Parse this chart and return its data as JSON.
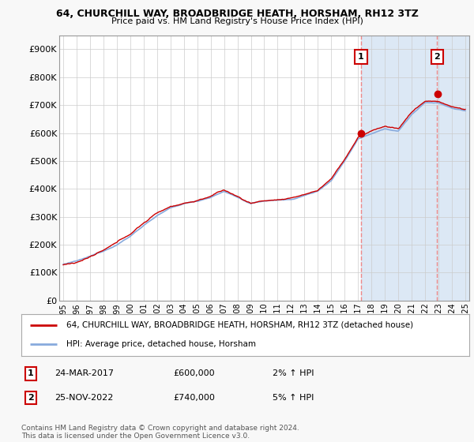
{
  "title": "64, CHURCHILL WAY, BROADBRIDGE HEATH, HORSHAM, RH12 3TZ",
  "subtitle": "Price paid vs. HM Land Registry's House Price Index (HPI)",
  "ylabel_ticks": [
    "£0",
    "£100K",
    "£200K",
    "£300K",
    "£400K",
    "£500K",
    "£600K",
    "£700K",
    "£800K",
    "£900K"
  ],
  "ytick_values": [
    0,
    100000,
    200000,
    300000,
    400000,
    500000,
    600000,
    700000,
    800000,
    900000
  ],
  "ylim": [
    0,
    950000
  ],
  "xlim_start": 1994.7,
  "xlim_end": 2025.3,
  "marker1_date": 2017.22,
  "marker2_date": 2022.9,
  "marker1_value": 600000,
  "marker2_value": 740000,
  "legend_line1": "64, CHURCHILL WAY, BROADBRIDGE HEATH, HORSHAM, RH12 3TZ (detached house)",
  "legend_line2": "HPI: Average price, detached house, Horsham",
  "annotation1_label": "1",
  "annotation1_date": "24-MAR-2017",
  "annotation1_price": "£600,000",
  "annotation1_hpi": "2% ↑ HPI",
  "annotation2_label": "2",
  "annotation2_date": "25-NOV-2022",
  "annotation2_price": "£740,000",
  "annotation2_hpi": "5% ↑ HPI",
  "footer": "Contains HM Land Registry data © Crown copyright and database right 2024.\nThis data is licensed under the Open Government Licence v3.0.",
  "line_color_red": "#cc0000",
  "line_color_blue": "#88aadd",
  "marker_box_color": "#cc0000",
  "bg_color": "#ffffff",
  "shade_color": "#dce8f5",
  "vline_color": "#ee8888",
  "grid_color": "#cccccc",
  "key_years": [
    1995,
    1996,
    1997,
    1998,
    1999,
    2000,
    2001,
    2002,
    2003,
    2004,
    2005,
    2006,
    2007,
    2008,
    2009,
    2010,
    2011,
    2012,
    2013,
    2014,
    2015,
    2016,
    2017,
    2018,
    2019,
    2020,
    2021,
    2022,
    2023,
    2024,
    2025
  ],
  "key_vals_hpi": [
    130000,
    140000,
    155000,
    175000,
    200000,
    230000,
    270000,
    305000,
    330000,
    345000,
    355000,
    370000,
    390000,
    370000,
    345000,
    355000,
    358000,
    360000,
    375000,
    390000,
    430000,
    500000,
    580000,
    600000,
    620000,
    610000,
    670000,
    710000,
    710000,
    690000,
    680000
  ],
  "key_vals_red": [
    128000,
    138000,
    158000,
    178000,
    203000,
    235000,
    275000,
    310000,
    335000,
    348000,
    358000,
    375000,
    395000,
    372000,
    348000,
    358000,
    362000,
    363000,
    378000,
    393000,
    435000,
    505000,
    585000,
    605000,
    625000,
    615000,
    675000,
    715000,
    715000,
    695000,
    685000
  ]
}
